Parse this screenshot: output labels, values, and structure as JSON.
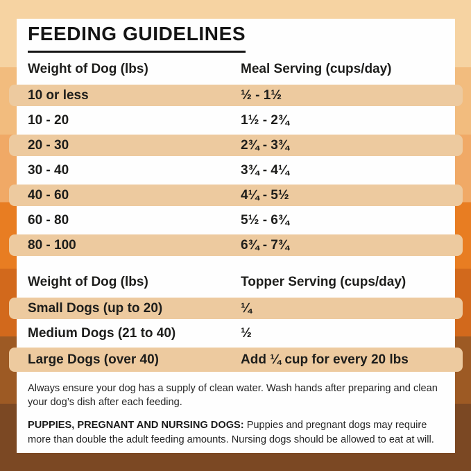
{
  "title": "FEEDING GUIDELINES",
  "meal_table": {
    "col1_header": "Weight of Dog (lbs)",
    "col2_header": "Meal Serving (cups/day)",
    "rows": [
      {
        "weight": "10 or less",
        "serving": "½ - 1½"
      },
      {
        "weight": "10 - 20",
        "serving": "1½ - 2¾"
      },
      {
        "weight": "20 - 30",
        "serving": "2¾ - 3¾"
      },
      {
        "weight": "30 - 40",
        "serving": "3¾ - 4¼"
      },
      {
        "weight": "40 - 60",
        "serving": "4¼ - 5½"
      },
      {
        "weight": "60 - 80",
        "serving": "5½ - 6¾"
      },
      {
        "weight": "80 - 100",
        "serving": "6¾ - 7¾"
      }
    ]
  },
  "topper_table": {
    "col1_header": "Weight of Dog (lbs)",
    "col2_header": "Topper Serving (cups/day)",
    "rows": [
      {
        "weight": "Small Dogs (up to 20)",
        "serving": "¼"
      },
      {
        "weight": "Medium Dogs (21 to 40)",
        "serving": "½"
      },
      {
        "weight": "Large Dogs (over 40)",
        "serving": "Add ¼ cup for every 20 lbs"
      }
    ]
  },
  "notes": {
    "water": "Always ensure your dog has a supply of clean water. Wash hands after preparing and clean your dog’s dish after each feeding.",
    "puppies_label": "PUPPIES, PREGNANT AND NURSING DOGS:",
    "puppies_text": "Puppies and pregnant dogs may require more than double the adult feeding amounts. Nursing dogs should be allowed to eat at will."
  },
  "colors": {
    "band1": "#f6d3a2",
    "band2": "#f2bc7e",
    "band3": "#f0a966",
    "band4": "#e87d22",
    "band5": "#d2691c",
    "band6": "#9d5a24",
    "band7": "#7b4823",
    "stripe": "#edca9f",
    "card": "#fefefe",
    "text": "#1d1d1b",
    "underline": "#161616"
  }
}
